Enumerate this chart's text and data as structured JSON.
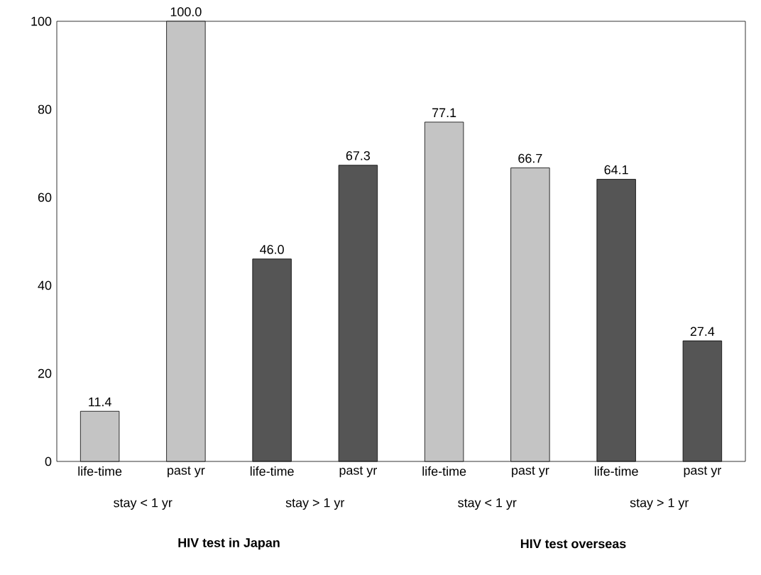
{
  "chart_data": {
    "type": "bar",
    "categories": [
      "life-time",
      "past yr",
      "life-time",
      "past yr",
      "life-time",
      "past yr",
      "life-time",
      "past yr"
    ],
    "values": [
      11.4,
      100.0,
      46.0,
      67.3,
      77.1,
      66.7,
      64.1,
      27.4
    ],
    "colors": [
      "#c4c4c4",
      "#c4c4c4",
      "#555555",
      "#555555",
      "#c4c4c4",
      "#c4c4c4",
      "#555555",
      "#555555"
    ],
    "value_labels": [
      "11.4",
      "100.0",
      "46.0",
      "67.3",
      "77.1",
      "66.7",
      "64.1",
      "27.4"
    ],
    "annotations": [
      "stay < 1 yr",
      "stay > 1 yr",
      "stay < 1 yr",
      "stay > 1 yr",
      "HIV test  in Japan",
      "HIV test  overseas"
    ],
    "ylim": [
      0,
      100
    ],
    "yticks": [
      0,
      20,
      40,
      60,
      80,
      100
    ],
    "grid": false
  }
}
